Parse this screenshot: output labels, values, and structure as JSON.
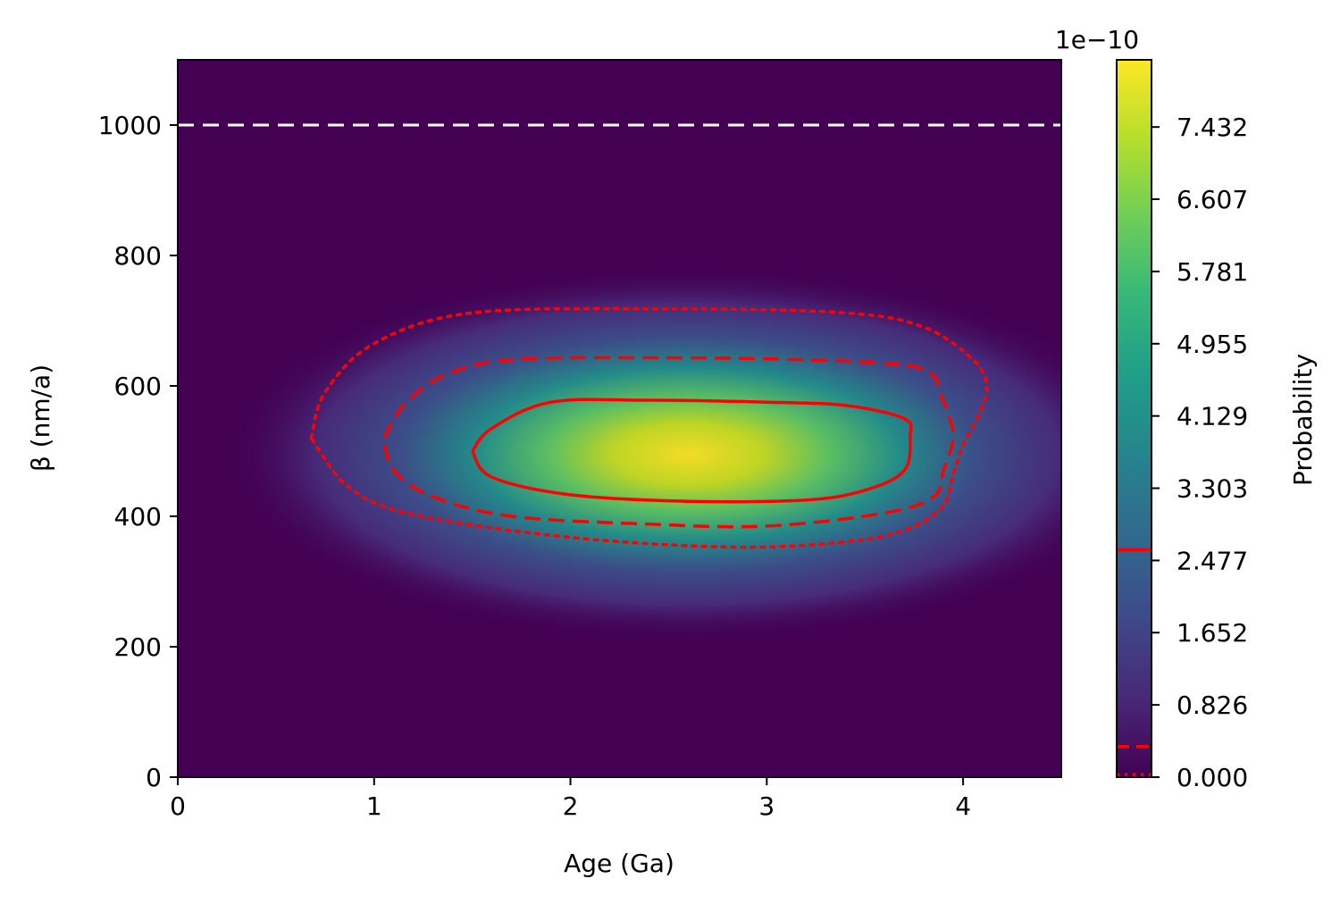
{
  "chart_data": {
    "type": "heatmap",
    "xlabel": "Age (Ga)",
    "ylabel": "β (nm/a)",
    "xlim": [
      0,
      4.5
    ],
    "ylim": [
      0,
      1100
    ],
    "x_ticks": [
      "0",
      "1",
      "2",
      "3",
      "4"
    ],
    "x_tick_values": [
      0,
      1,
      2,
      3,
      4
    ],
    "y_ticks": [
      "0",
      "200",
      "400",
      "600",
      "800",
      "1000"
    ],
    "y_tick_values": [
      0,
      200,
      400,
      600,
      800,
      1000
    ],
    "colormap": "viridis",
    "grid": false,
    "density": {
      "peak_age_ga": 2.6,
      "peak_beta_nm_per_a": 495,
      "peak_probability": 8e-10
    },
    "reference_line": {
      "beta": 1000,
      "style": "dashed",
      "color": "#ffffff"
    },
    "contours": [
      {
        "name": "solid",
        "style": "solid",
        "color": "#ff0000",
        "level": 2.6e-10,
        "points": [
          [
            1.5,
            500
          ],
          [
            1.6,
            535
          ],
          [
            1.9,
            575
          ],
          [
            2.4,
            578
          ],
          [
            3.0,
            575
          ],
          [
            3.4,
            570
          ],
          [
            3.7,
            550
          ],
          [
            3.73,
            522
          ],
          [
            3.7,
            470
          ],
          [
            3.5,
            440
          ],
          [
            3.2,
            425
          ],
          [
            2.6,
            423
          ],
          [
            2.0,
            433
          ],
          [
            1.6,
            460
          ],
          [
            1.5,
            500
          ]
        ]
      },
      {
        "name": "dashed",
        "style": "dashed",
        "color": "#ff0000",
        "level": 3.5e-11,
        "points": [
          [
            1.05,
            520
          ],
          [
            1.15,
            570
          ],
          [
            1.35,
            615
          ],
          [
            1.7,
            640
          ],
          [
            2.5,
            643
          ],
          [
            3.2,
            640
          ],
          [
            3.7,
            632
          ],
          [
            3.85,
            615
          ],
          [
            3.88,
            590
          ],
          [
            3.92,
            560
          ],
          [
            3.95,
            520
          ],
          [
            3.9,
            470
          ],
          [
            3.85,
            430
          ],
          [
            3.6,
            405
          ],
          [
            3.0,
            385
          ],
          [
            2.4,
            388
          ],
          [
            1.7,
            400
          ],
          [
            1.3,
            430
          ],
          [
            1.1,
            470
          ],
          [
            1.05,
            520
          ]
        ]
      },
      {
        "name": "dotted",
        "style": "dotted",
        "color": "#ff0000",
        "level": 0.0,
        "points": [
          [
            0.68,
            520
          ],
          [
            0.75,
            590
          ],
          [
            1.0,
            665
          ],
          [
            1.5,
            712
          ],
          [
            2.5,
            718
          ],
          [
            3.4,
            712
          ],
          [
            3.8,
            690
          ],
          [
            4.05,
            640
          ],
          [
            4.12,
            600
          ],
          [
            4.08,
            555
          ],
          [
            4.0,
            510
          ],
          [
            3.95,
            465
          ],
          [
            3.88,
            410
          ],
          [
            3.6,
            370
          ],
          [
            3.0,
            353
          ],
          [
            2.3,
            360
          ],
          [
            1.6,
            382
          ],
          [
            1.1,
            410
          ],
          [
            0.85,
            450
          ],
          [
            0.68,
            520
          ]
        ]
      }
    ],
    "colorbar": {
      "label": "Probability",
      "offset_text": "1e−10",
      "range": [
        0,
        8.2
      ],
      "ticks": [
        "0.000",
        "0.826",
        "1.652",
        "2.477",
        "3.303",
        "4.129",
        "4.955",
        "5.781",
        "6.607",
        "7.432"
      ],
      "tick_values": [
        0.0,
        0.826,
        1.652,
        2.477,
        3.303,
        4.129,
        4.955,
        5.781,
        6.607,
        7.432
      ],
      "contour_markers": [
        {
          "value": 0.0,
          "style": "dotted"
        },
        {
          "value": 0.35,
          "style": "dashed"
        },
        {
          "value": 2.6,
          "style": "solid"
        }
      ]
    }
  }
}
